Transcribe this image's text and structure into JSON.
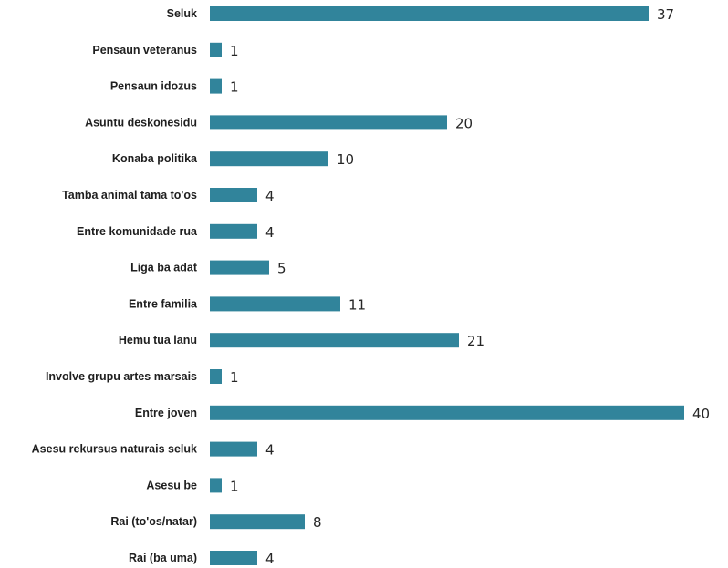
{
  "chart_data": {
    "type": "bar",
    "orientation": "horizontal",
    "categories": [
      "Seluk",
      "Pensaun veteranus",
      "Pensaun idozus",
      "Asuntu deskonesidu",
      "Konaba politika",
      "Tamba animal tama to'os",
      "Entre komunidade rua",
      "Liga ba adat",
      "Entre familia",
      "Hemu tua lanu",
      "Involve grupu artes marsais",
      "Entre joven",
      "Asesu rekursus naturais seluk",
      "Asesu be",
      "Rai (to'os/natar)",
      "Rai (ba uma)"
    ],
    "values": [
      37,
      1,
      1,
      20,
      10,
      4,
      4,
      5,
      11,
      21,
      1,
      40,
      4,
      1,
      8,
      4
    ],
    "xlim": [
      0,
      40
    ],
    "grid": false,
    "legend": "none",
    "bar_color": "#31849b"
  }
}
